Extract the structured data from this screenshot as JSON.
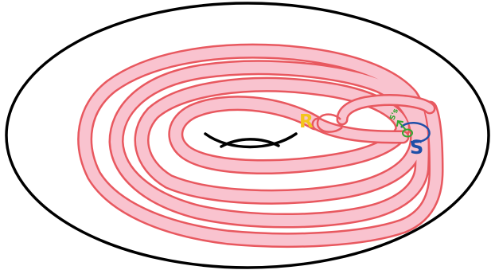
{
  "labels": {
    "r": "R",
    "s": "S",
    "s_prime": "S's"
  },
  "colors": {
    "torus_outline": "#000000",
    "band_fill": "#f9c3cf",
    "band_edge": "#e8585f",
    "label_r": "#f3c51c",
    "label_s": "#1f4fa8",
    "label_s_prime": "#33a532",
    "arrow": "#33a532",
    "loop_s": "#1f4fa8"
  }
}
